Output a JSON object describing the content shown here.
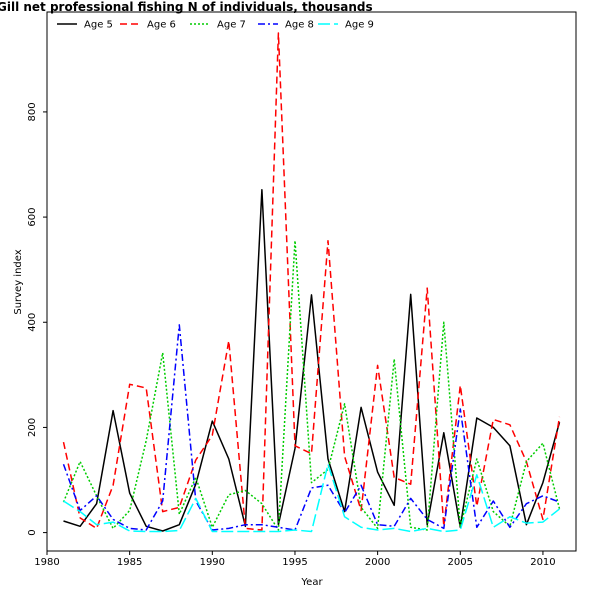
{
  "chart_data": {
    "type": "line",
    "title": "Gill net professional fishing N of individuals, thousands",
    "xlabel": "Year",
    "ylabel": "Survey index",
    "xlim": [
      1980,
      2012
    ],
    "ylim": [
      -35,
      990
    ],
    "xticks": [
      1980,
      1985,
      1990,
      1995,
      2000,
      2005,
      2010
    ],
    "yticks": [
      0,
      200,
      400,
      600,
      800
    ],
    "grid": false,
    "legend_position": "top-left",
    "x": [
      1981,
      1982,
      1983,
      1984,
      1985,
      1986,
      1987,
      1988,
      1989,
      1990,
      1991,
      1992,
      1993,
      1994,
      1995,
      1996,
      1997,
      1998,
      1999,
      2000,
      2001,
      2002,
      2003,
      2004,
      2005,
      2006,
      2007,
      2008,
      2009,
      2010,
      2011
    ],
    "series": [
      {
        "name": "Age 5",
        "color": "#000000",
        "dash": "solid",
        "values": [
          22,
          12,
          55,
          232,
          75,
          12,
          3,
          15,
          92,
          212,
          140,
          12,
          652,
          15,
          160,
          452,
          140,
          40,
          238,
          115,
          52,
          453,
          15,
          190,
          10,
          218,
          200,
          165,
          15,
          95,
          210
        ]
      },
      {
        "name": "Age 6",
        "color": "#ff0000",
        "dash": "dashed",
        "values": [
          172,
          28,
          8,
          90,
          282,
          275,
          40,
          48,
          138,
          185,
          365,
          8,
          5,
          950,
          165,
          150,
          555,
          145,
          42,
          318,
          105,
          92,
          465,
          12,
          280,
          50,
          215,
          205,
          135,
          25,
          220
        ]
      },
      {
        "name": "Age 7",
        "color": "#00cc00",
        "dash": "dotted",
        "values": [
          58,
          135,
          70,
          8,
          42,
          175,
          342,
          35,
          105,
          10,
          72,
          80,
          55,
          5,
          555,
          95,
          120,
          245,
          48,
          8,
          330,
          10,
          5,
          400,
          10,
          140,
          40,
          12,
          135,
          170,
          45
        ]
      },
      {
        "name": "Age 8",
        "color": "#0000ff",
        "dash": "dashdot",
        "values": [
          130,
          42,
          70,
          25,
          8,
          5,
          60,
          395,
          60,
          5,
          8,
          15,
          15,
          10,
          5,
          85,
          90,
          38,
          90,
          15,
          12,
          65,
          25,
          8,
          235,
          10,
          60,
          10,
          55,
          70,
          58
        ]
      },
      {
        "name": "Age 9",
        "color": "#00ffff",
        "dash": "longdash",
        "values": [
          60,
          40,
          15,
          20,
          3,
          2,
          2,
          4,
          65,
          2,
          2,
          2,
          2,
          2,
          5,
          2,
          130,
          30,
          10,
          5,
          8,
          2,
          8,
          2,
          5,
          110,
          10,
          30,
          18,
          20,
          45
        ]
      }
    ]
  }
}
